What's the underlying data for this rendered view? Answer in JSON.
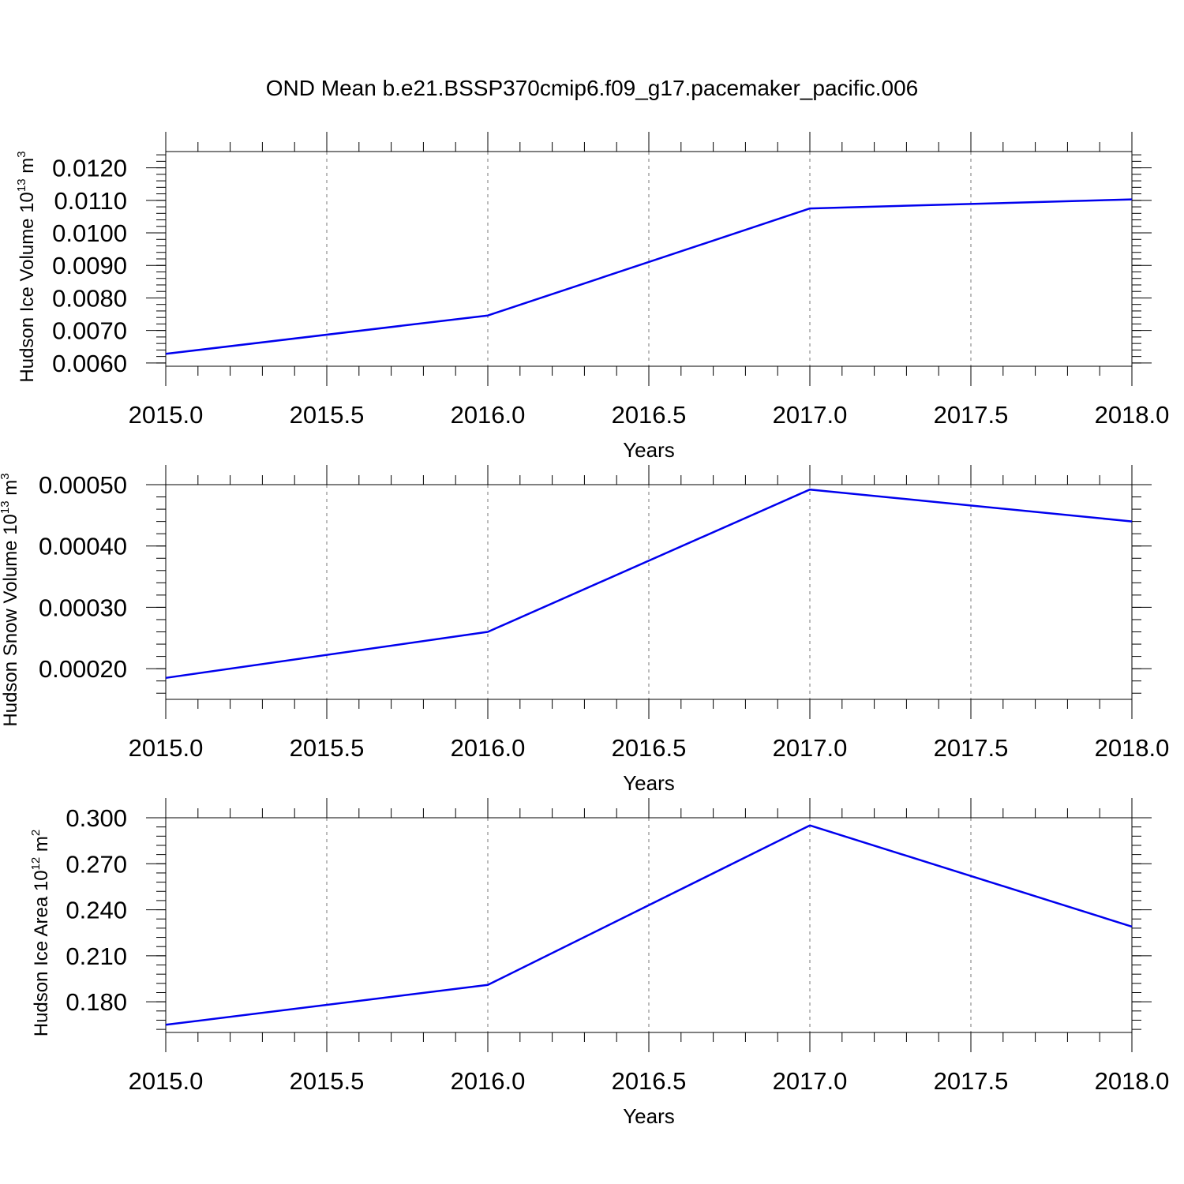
{
  "title": "OND Mean b.e21.BSSP370cmip6.f09_g17.pacemaker_pacific.006",
  "chart_data": [
    {
      "type": "line",
      "ylabel": {
        "main": "Hudson Ice Volume 10",
        "exp": "13",
        "unit": " m",
        "unit_exp": "3"
      },
      "xlabel": "Years",
      "x": [
        2015,
        2016,
        2017,
        2018
      ],
      "series": [
        {
          "values": [
            0.00628,
            0.00746,
            0.01075,
            0.01103
          ],
          "color": "#0000ee"
        }
      ],
      "xlim": [
        2015,
        2018
      ],
      "ylim": [
        0.0059,
        0.0125
      ],
      "xticks": [
        "2015.0",
        "2015.5",
        "2016.0",
        "2016.5",
        "2017.0",
        "2017.5",
        "2018.0"
      ],
      "yticks": [
        "0.0060",
        "0.0070",
        "0.0080",
        "0.0090",
        "0.0100",
        "0.0110",
        "0.0120"
      ],
      "grid": "x-dashed"
    },
    {
      "type": "line",
      "ylabel": {
        "main": "Hudson Snow Volume 10",
        "exp": "13",
        "unit": " m",
        "unit_exp": "3"
      },
      "xlabel": "Years",
      "x": [
        2015,
        2016,
        2017,
        2018
      ],
      "series": [
        {
          "values": [
            0.000185,
            0.00026,
            0.000492,
            0.00044
          ],
          "color": "#0000ee"
        }
      ],
      "xlim": [
        2015,
        2018
      ],
      "ylim": [
        0.00015,
        0.0005
      ],
      "xticks": [
        "2015.0",
        "2015.5",
        "2016.0",
        "2016.5",
        "2017.0",
        "2017.5",
        "2018.0"
      ],
      "yticks": [
        "0.00020",
        "0.00030",
        "0.00040",
        "0.00050"
      ],
      "grid": "x-dashed"
    },
    {
      "type": "line",
      "ylabel": {
        "main": "Hudson Ice Area 10",
        "exp": "12",
        "unit": " m",
        "unit_exp": "2"
      },
      "xlabel": "Years",
      "x": [
        2015,
        2016,
        2017,
        2018
      ],
      "series": [
        {
          "values": [
            0.165,
            0.191,
            0.295,
            0.229
          ],
          "color": "#0000ee"
        }
      ],
      "xlim": [
        2015,
        2018
      ],
      "ylim": [
        0.16,
        0.3
      ],
      "xticks": [
        "2015.0",
        "2015.5",
        "2016.0",
        "2016.5",
        "2017.0",
        "2017.5",
        "2018.0"
      ],
      "yticks": [
        "0.180",
        "0.210",
        "0.240",
        "0.270",
        "0.300"
      ],
      "grid": "x-dashed"
    }
  ]
}
